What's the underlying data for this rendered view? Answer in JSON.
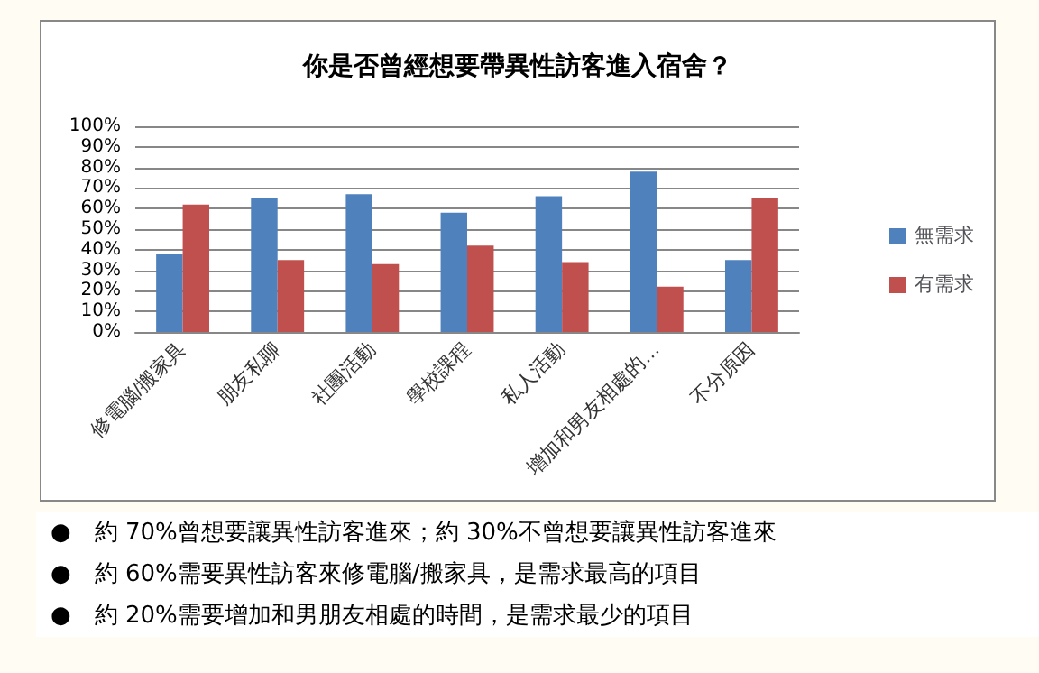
{
  "chart_data": {
    "type": "bar",
    "title": "你是否曾經想要帶異性訪客進入宿舍？",
    "categories": [
      "修電腦/搬家具",
      "朋友私聊",
      "社團活動",
      "學校課程",
      "私人活動",
      "增加和男友相處的…",
      "不分原因"
    ],
    "series": [
      {
        "name": "無需求",
        "color": "#4f81bd",
        "values": [
          38,
          65,
          67,
          58,
          66,
          78,
          35
        ]
      },
      {
        "name": "有需求",
        "color": "#c0504d",
        "values": [
          62,
          35,
          33,
          42,
          34,
          22,
          65
        ]
      }
    ],
    "ylim": [
      0,
      100
    ],
    "yticks": [
      {
        "value": 0,
        "label": "0%"
      },
      {
        "value": 10,
        "label": "10%"
      },
      {
        "value": 20,
        "label": "20%"
      },
      {
        "value": 30,
        "label": "30%"
      },
      {
        "value": 40,
        "label": "40%"
      },
      {
        "value": 50,
        "label": "50%"
      },
      {
        "value": 60,
        "label": "60%"
      },
      {
        "value": 70,
        "label": "70%"
      },
      {
        "value": 80,
        "label": "80%"
      },
      {
        "value": 90,
        "label": "90%"
      },
      {
        "value": 100,
        "label": "100%"
      }
    ],
    "grid": "y",
    "legend": "right",
    "annotations": [
      "● 約 70%曾想要讓異性訪客進來；約 30%不曾想要讓異性訪客進來",
      "● 約 60%需要異性訪客來修電腦/搬家具，是需求最高的項目",
      "● 約 20%需要增加和男朋友相處的時間，是需求最少的項目"
    ]
  }
}
